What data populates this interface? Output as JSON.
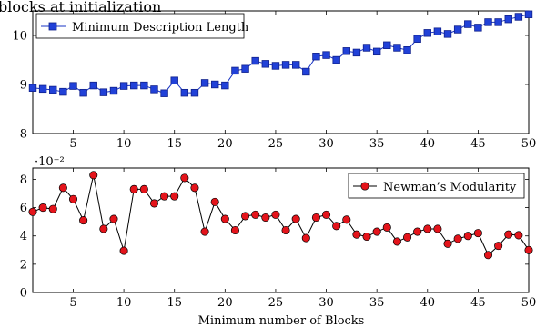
{
  "chart_data": [
    {
      "type": "line",
      "title": "blocks at initialization",
      "x": [
        1,
        2,
        3,
        4,
        5,
        6,
        7,
        8,
        9,
        10,
        11,
        12,
        13,
        14,
        15,
        16,
        17,
        18,
        19,
        20,
        21,
        22,
        23,
        24,
        25,
        26,
        27,
        28,
        29,
        30,
        31,
        32,
        33,
        34,
        35,
        36,
        37,
        38,
        39,
        40,
        41,
        42,
        43,
        44,
        45,
        46,
        47,
        48,
        49,
        50
      ],
      "x_ticks": [
        5,
        10,
        15,
        20,
        25,
        30,
        35,
        40,
        45,
        50
      ],
      "x_tick_labels": [
        "5",
        "10",
        "15",
        "20",
        "25",
        "30",
        "35",
        "40",
        "45",
        "50"
      ],
      "xlim": [
        1,
        50
      ],
      "ylim": [
        8,
        10.5
      ],
      "y_ticks": [
        8,
        9,
        10
      ],
      "y_tick_labels": [
        "8",
        "9",
        "10"
      ],
      "xlabel": "",
      "ylabel": "",
      "legend_position": "top-left",
      "series": [
        {
          "name": "Minimum Description Length",
          "marker": "square",
          "color": "#1f3fbf",
          "values": [
            8.93,
            8.91,
            8.89,
            8.85,
            8.97,
            8.83,
            8.98,
            8.84,
            8.87,
            8.97,
            8.98,
            8.98,
            8.9,
            8.82,
            9.08,
            8.83,
            8.83,
            9.03,
            9.0,
            8.98,
            9.28,
            9.32,
            9.48,
            9.42,
            9.38,
            9.4,
            9.4,
            9.26,
            9.57,
            9.6,
            9.5,
            9.68,
            9.65,
            9.75,
            9.67,
            9.8,
            9.75,
            9.7,
            9.93,
            10.05,
            10.08,
            10.03,
            10.12,
            10.23,
            10.16,
            10.27,
            10.27,
            10.33,
            10.38,
            10.43
          ]
        }
      ]
    },
    {
      "type": "line",
      "title": "",
      "y_scale_label": "·10⁻²",
      "x": [
        1,
        2,
        3,
        4,
        5,
        6,
        7,
        8,
        9,
        10,
        11,
        12,
        13,
        14,
        15,
        16,
        17,
        18,
        19,
        20,
        21,
        22,
        23,
        24,
        25,
        26,
        27,
        28,
        29,
        30,
        31,
        32,
        33,
        34,
        35,
        36,
        37,
        38,
        39,
        40,
        41,
        42,
        43,
        44,
        45,
        46,
        47,
        48,
        49,
        50
      ],
      "x_ticks": [
        5,
        10,
        15,
        20,
        25,
        30,
        35,
        40,
        45,
        50
      ],
      "x_tick_labels": [
        "5",
        "10",
        "15",
        "20",
        "25",
        "30",
        "35",
        "40",
        "45",
        "50"
      ],
      "xlim": [
        1,
        50
      ],
      "ylim": [
        0,
        8.8
      ],
      "y_ticks": [
        0,
        2,
        4,
        6,
        8
      ],
      "y_tick_labels": [
        "0",
        "2",
        "4",
        "6",
        "8"
      ],
      "xlabel": "Minimum number of Blocks",
      "ylabel": "",
      "legend_position": "top-right",
      "series": [
        {
          "name": "Newman’s Modularity",
          "marker": "circle",
          "color": "#e4141b",
          "values": [
            5.7,
            6.0,
            5.9,
            7.4,
            6.6,
            5.1,
            8.3,
            4.5,
            5.2,
            2.95,
            7.3,
            7.3,
            6.3,
            6.8,
            6.8,
            8.1,
            7.4,
            4.3,
            6.4,
            5.2,
            4.4,
            5.4,
            5.5,
            5.3,
            5.5,
            4.4,
            5.2,
            3.85,
            5.3,
            5.5,
            4.7,
            5.15,
            4.1,
            3.95,
            4.3,
            4.6,
            3.6,
            3.9,
            4.3,
            4.5,
            4.5,
            3.45,
            3.8,
            4.0,
            4.2,
            2.65,
            3.3,
            4.1,
            4.05,
            3.0
          ]
        }
      ]
    }
  ]
}
